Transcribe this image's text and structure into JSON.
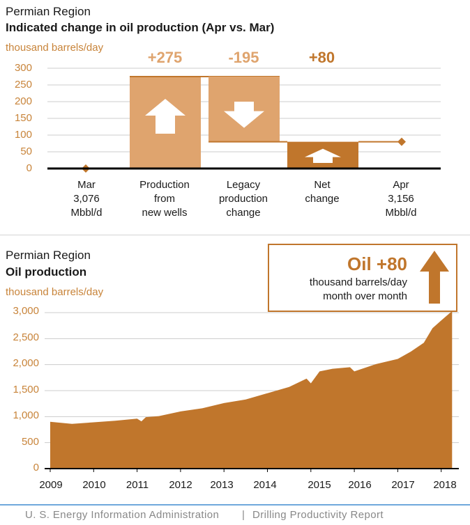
{
  "colors": {
    "axis_text": "#c8843a",
    "dark_bar": "#c0762c",
    "light_bar": "#dfa46e",
    "area_fill": "#c0762c",
    "footer_rule": "#6fa8dc"
  },
  "top": {
    "region": "Permian Region",
    "title": "Indicated change in oil production (Apr vs. Mar)",
    "unit": "thousand barrels/day",
    "chart_data": {
      "type": "bar",
      "categories": [
        "Mar\n3,076\nMbbl/d",
        "Production\nfrom\nnew wells",
        "Legacy\nproduction\nchange",
        "Net\nchange",
        "Apr\n3,156\nMbbl/d"
      ],
      "values": [
        0,
        275,
        -195,
        80,
        80
      ],
      "labels": [
        "",
        "+275",
        "-195",
        "+80",
        ""
      ],
      "yticks": [
        "300",
        "250",
        "200",
        "150",
        "100",
        "50",
        "0"
      ],
      "ylim": [
        0,
        300
      ]
    }
  },
  "bottom": {
    "region": "Permian Region",
    "title": "Oil production",
    "unit": "thousand barrels/day",
    "callout_head": "Oil +80",
    "callout_sub": "thousand barrels/day\nmonth over month",
    "chart_data": {
      "type": "area",
      "yticks": [
        "3,000",
        "2,500",
        "2,000",
        "1,500",
        "1,000",
        "500",
        "0"
      ],
      "xticks": [
        "2009",
        "2010",
        "2011",
        "2012",
        "2013",
        "2014",
        "2015",
        "2016",
        "2017",
        "2018"
      ],
      "ylim": [
        0,
        3000
      ],
      "x": [
        2009.0,
        2009.5,
        2010.0,
        2010.5,
        2011.0,
        2011.1,
        2011.2,
        2011.5,
        2012.0,
        2012.5,
        2013.0,
        2013.5,
        2014.0,
        2014.5,
        2014.9,
        2015.0,
        2015.2,
        2015.5,
        2015.9,
        2016.0,
        2016.5,
        2017.0,
        2017.3,
        2017.6,
        2017.8,
        2018.0,
        2018.25
      ],
      "values": [
        900,
        860,
        890,
        920,
        960,
        910,
        990,
        1010,
        1100,
        1160,
        1260,
        1330,
        1450,
        1570,
        1730,
        1640,
        1870,
        1920,
        1950,
        1870,
        2010,
        2110,
        2250,
        2420,
        2700,
        2850,
        3030
      ]
    }
  },
  "footer": {
    "agency": "U. S. Energy Information Administration",
    "separator": "|",
    "report": "Drilling Productivity Report"
  }
}
